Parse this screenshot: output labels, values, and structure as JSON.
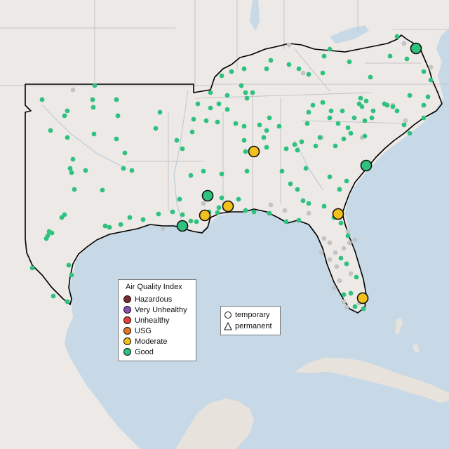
{
  "legend": {
    "title": "Air Quality Index",
    "categories": [
      {
        "label": "Hazardous",
        "color": "#7e2b2b"
      },
      {
        "label": "Very Unhealthy",
        "color": "#8b4fb5"
      },
      {
        "label": "Unhealthy",
        "color": "#e8413a"
      },
      {
        "label": "USG",
        "color": "#e8761f"
      },
      {
        "label": "Moderate",
        "color": "#f2c11c"
      },
      {
        "label": "Good",
        "color": "#2ec27e"
      }
    ]
  },
  "monitor_types": {
    "temporary": "temporary",
    "permanent": "permanent"
  },
  "colors": {
    "water": "#c7d8e6",
    "land": "#ece9e6",
    "land_south": "#e7e2dc",
    "no_data": "#c4c4c4",
    "region_outline": "#000000"
  }
}
